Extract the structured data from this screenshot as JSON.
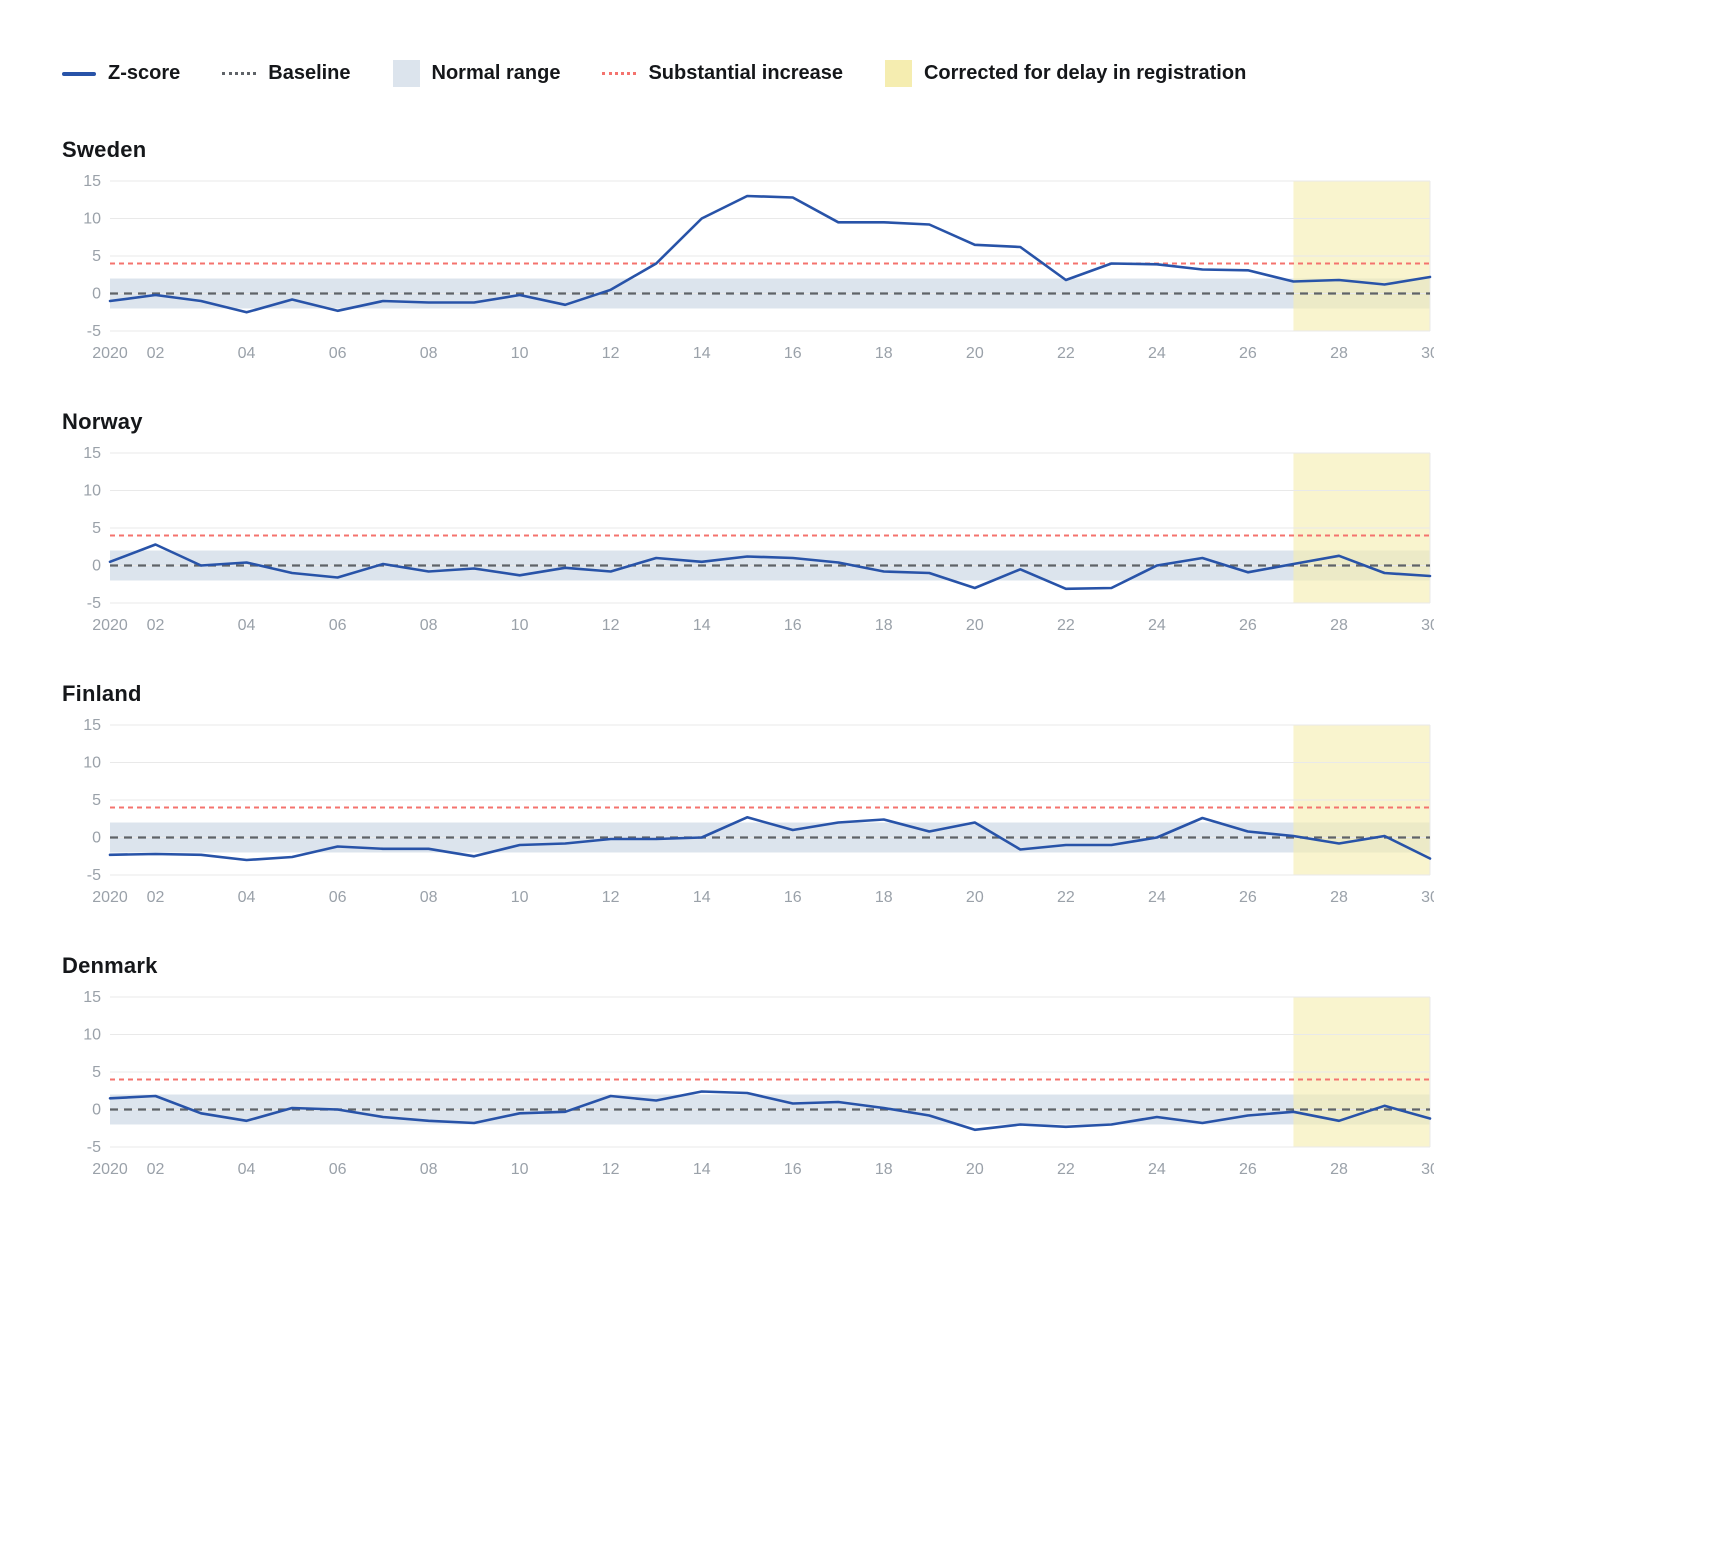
{
  "legend": {
    "items": [
      {
        "label": "Z-score",
        "swatch": "zscore-line"
      },
      {
        "label": "Baseline",
        "swatch": "baseline-dashed"
      },
      {
        "label": "Normal range",
        "swatch": "normal-range-box"
      },
      {
        "label": "Substantial increase",
        "swatch": "substantial-increase-dashed"
      },
      {
        "label": "Corrected for delay in registration",
        "swatch": "corrected-box"
      }
    ]
  },
  "chart_config": {
    "type": "line",
    "ylim": [
      -5,
      15
    ],
    "yticks": [
      15,
      10,
      5,
      0,
      -5
    ],
    "xtick_weeks": [
      1,
      2,
      4,
      6,
      8,
      10,
      12,
      14,
      16,
      18,
      20,
      22,
      24,
      26,
      28,
      30
    ],
    "xtick_labels": [
      "2020",
      "02",
      "04",
      "06",
      "08",
      "10",
      "12",
      "14",
      "16",
      "18",
      "20",
      "22",
      "24",
      "26",
      "28",
      "30"
    ],
    "baseline": 0,
    "substantial_increase": 4,
    "normal_range": [
      -2,
      2
    ],
    "corrected_region": [
      27,
      30
    ],
    "colors": {
      "zscore": "#2853a8",
      "baseline": "#5f6368",
      "normal_range": "#dce4ed",
      "substantial": "#f4736e",
      "corrected": "#f5edb0",
      "grid": "#e9e9e9",
      "tick_text": "#9aa1a9"
    }
  },
  "chart_data": [
    {
      "type": "line",
      "title": "Sweden",
      "weeks": [
        1,
        2,
        3,
        4,
        5,
        6,
        7,
        8,
        9,
        10,
        11,
        12,
        13,
        14,
        15,
        16,
        17,
        18,
        19,
        20,
        21,
        22,
        23,
        24,
        25,
        26,
        27,
        28,
        29,
        30
      ],
      "values": [
        -1.0,
        -0.2,
        -1.0,
        -2.5,
        -0.8,
        -2.3,
        -1.0,
        -1.2,
        -1.2,
        -0.2,
        -1.5,
        0.5,
        4.0,
        10.0,
        13.0,
        12.8,
        9.5,
        9.5,
        9.2,
        6.5,
        6.2,
        1.8,
        4.0,
        3.9,
        3.2,
        3.1,
        1.6,
        1.8,
        1.2,
        2.2
      ]
    },
    {
      "type": "line",
      "title": "Norway",
      "weeks": [
        1,
        2,
        3,
        4,
        5,
        6,
        7,
        8,
        9,
        10,
        11,
        12,
        13,
        14,
        15,
        16,
        17,
        18,
        19,
        20,
        21,
        22,
        23,
        24,
        25,
        26,
        27,
        28,
        29,
        30
      ],
      "values": [
        0.5,
        2.8,
        0.0,
        0.4,
        -1.0,
        -1.6,
        0.2,
        -0.8,
        -0.4,
        -1.3,
        -0.3,
        -0.8,
        1.0,
        0.5,
        1.2,
        1.0,
        0.4,
        -0.8,
        -1.0,
        -3.0,
        -0.5,
        -3.1,
        -3.0,
        0.0,
        1.0,
        -0.9,
        0.2,
        1.3,
        -1.0,
        -1.4
      ]
    },
    {
      "type": "line",
      "title": "Finland",
      "weeks": [
        1,
        2,
        3,
        4,
        5,
        6,
        7,
        8,
        9,
        10,
        11,
        12,
        13,
        14,
        15,
        16,
        17,
        18,
        19,
        20,
        21,
        22,
        23,
        24,
        25,
        26,
        27,
        28,
        29,
        30
      ],
      "values": [
        -2.3,
        -2.2,
        -2.3,
        -3.0,
        -2.6,
        -1.2,
        -1.5,
        -1.5,
        -2.5,
        -1.0,
        -0.8,
        -0.2,
        -0.2,
        0.0,
        2.7,
        1.0,
        2.0,
        2.4,
        0.8,
        2.0,
        -1.6,
        -1.0,
        -1.0,
        0.0,
        2.6,
        0.8,
        0.2,
        -0.8,
        0.2,
        -2.8
      ]
    },
    {
      "type": "line",
      "title": "Denmark",
      "weeks": [
        1,
        2,
        3,
        4,
        5,
        6,
        7,
        8,
        9,
        10,
        11,
        12,
        13,
        14,
        15,
        16,
        17,
        18,
        19,
        20,
        21,
        22,
        23,
        24,
        25,
        26,
        27,
        28,
        29,
        30
      ],
      "values": [
        1.5,
        1.8,
        -0.5,
        -1.5,
        0.2,
        0.0,
        -1.0,
        -1.5,
        -1.8,
        -0.5,
        -0.3,
        1.8,
        1.2,
        2.4,
        2.2,
        0.8,
        1.0,
        0.2,
        -0.8,
        -2.7,
        -2.0,
        -2.3,
        -2.0,
        -1.0,
        -1.8,
        -0.8,
        -0.3,
        -1.5,
        0.5,
        -1.2
      ]
    }
  ]
}
